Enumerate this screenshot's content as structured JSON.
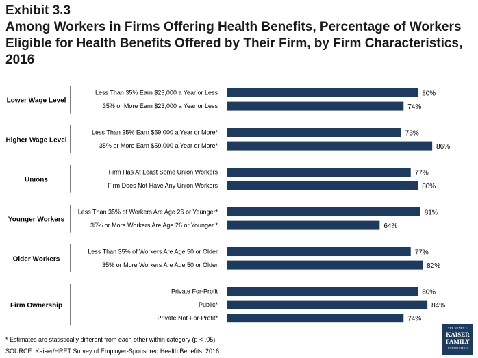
{
  "header": {
    "exhibit": "Exhibit 3.3",
    "title": "Among Workers in Firms Offering Health Benefits, Percentage of Workers Eligible for Health Benefits Offered by Their Firm, by Firm Characteristics, 2016"
  },
  "footnote": "* Estimates are statistically different from each other within category (p < .05).",
  "source": "SOURCE: Kaiser/HRET Survey of Employer-Sponsored Health Benefits, 2016.",
  "logo": {
    "line1": "THE HENRY J.",
    "line2": "KAISER",
    "line3": "FAMILY",
    "line4": "FOUNDATION"
  },
  "colors": {
    "bar": "#1d3a5f",
    "divider": "#000000"
  },
  "chart_data": {
    "type": "bar",
    "orientation": "horizontal",
    "value_suffix": "%",
    "xlim": [
      0,
      100
    ],
    "grid": false,
    "groups": [
      {
        "name": "Lower Wage Level",
        "items": [
          {
            "label": "Less Than 35% Earn $23,000 a Year or Less",
            "value": 80
          },
          {
            "label": "35% or More Earn $23,000 a Year or Less",
            "value": 74
          }
        ]
      },
      {
        "name": "Higher Wage Level",
        "items": [
          {
            "label": "Less Than 35% Earn $59,000 a Year or More*",
            "value": 73
          },
          {
            "label": "35% or More Earn $59,000 a Year or More*",
            "value": 86
          }
        ]
      },
      {
        "name": "Unions",
        "items": [
          {
            "label": "Firm Has At Least Some Union Workers",
            "value": 77
          },
          {
            "label": "Firm Does Not Have Any Union Workers",
            "value": 80
          }
        ]
      },
      {
        "name": "Younger Workers",
        "items": [
          {
            "label": "Less Than 35% of Workers Are Age 26 or Younger*",
            "value": 81
          },
          {
            "label": "35% or More Workers Are Age 26 or Younger *",
            "value": 64
          }
        ]
      },
      {
        "name": "Older Workers",
        "items": [
          {
            "label": "Less Than 35% of Workers Are Age 50 or Older",
            "value": 77
          },
          {
            "label": "35% or More Workers Are Age 50 or Older",
            "value": 82
          }
        ]
      },
      {
        "name": "Firm Ownership",
        "items": [
          {
            "label": "Private For-Profit",
            "value": 80
          },
          {
            "label": "Public*",
            "value": 84
          },
          {
            "label": "Private Not-For-Profit*",
            "value": 74
          }
        ]
      }
    ]
  }
}
